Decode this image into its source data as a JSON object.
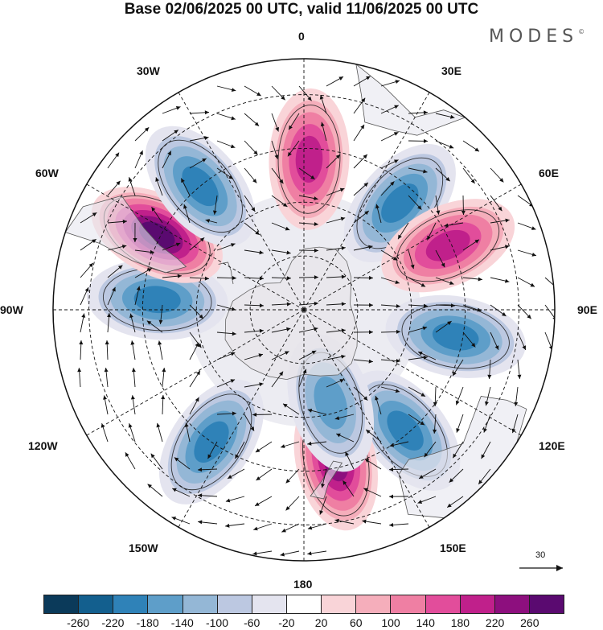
{
  "title": "Base 02/06/2025 00 UTC, valid 11/06/2025 00 UTC",
  "brand": "MODES",
  "brand_mark": "©",
  "map": {
    "projection": "south-polar-stereographic",
    "longitude_labels": {
      "lon_0": "0",
      "lon_30e": "30E",
      "lon_60e": "60E",
      "lon_90e": "90E",
      "lon_120e": "120E",
      "lon_150e": "150E",
      "lon_180": "180",
      "lon_150w": "150W",
      "lon_120w": "120W",
      "lon_90w": "90W",
      "lon_60w": "60W",
      "lon_30w": "30W"
    },
    "reference_vector": "30",
    "anomaly_centers": [
      {
        "lon": 2,
        "lat": -48,
        "value": 180
      },
      {
        "lon": 42,
        "lat": -50,
        "value": -200
      },
      {
        "lon": 66,
        "lat": -46,
        "value": 200
      },
      {
        "lon": 100,
        "lat": -47,
        "value": -200
      },
      {
        "lon": 140,
        "lat": -46,
        "value": -180
      },
      {
        "lon": 168,
        "lat": -47,
        "value": 220
      },
      {
        "lon": 164,
        "lat": -63,
        "value": -160
      },
      {
        "lon": -145,
        "lat": -45,
        "value": -200
      },
      {
        "lon": -86,
        "lat": -49,
        "value": -200
      },
      {
        "lon": -63,
        "lat": -44,
        "value": 260
      },
      {
        "lon": -40,
        "lat": -45,
        "value": -180
      }
    ]
  },
  "colorbar": {
    "ticks": [
      "-260",
      "-220",
      "-180",
      "-140",
      "-100",
      "-60",
      "-20",
      "20",
      "60",
      "100",
      "140",
      "180",
      "220",
      "260"
    ],
    "colors": [
      "#0b3a5a",
      "#135f8e",
      "#2f82b8",
      "#5e9ec9",
      "#94b7d6",
      "#bcc8e1",
      "#e4e4ef",
      "#ffffff",
      "#f9d4d8",
      "#f5aebb",
      "#ef7fa3",
      "#e24d9b",
      "#c0208b",
      "#8d0f7e",
      "#5a0a70"
    ]
  }
}
